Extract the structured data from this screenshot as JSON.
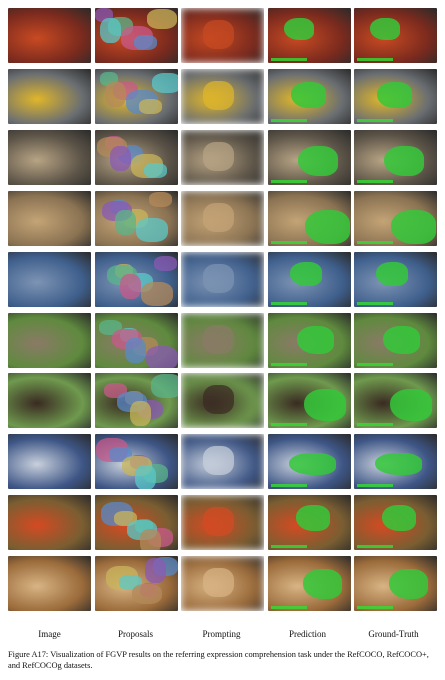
{
  "figure": {
    "columns": [
      "Image",
      "Proposals",
      "Prompting",
      "Prediction",
      "Ground-Truth"
    ],
    "caption": "Figure A17: Visualization of FGVP results on the referring expression comprehension task under the RefCOCO, RefCOCO+, and RefCOCOg datasets.",
    "rows": [
      {
        "scene": "fruit-bowl-tomatoes",
        "base": "#7a2a1e",
        "accent": "#c84a22",
        "mask": "#34c83a"
      },
      {
        "scene": "street-taxi",
        "base": "#6a6e72",
        "accent": "#e0b62a",
        "mask": "#34c83a"
      },
      {
        "scene": "dog-in-suitcase",
        "base": "#5b5347",
        "accent": "#b8a484",
        "mask": "#34c83a"
      },
      {
        "scene": "muddy-wrestling",
        "base": "#8a7252",
        "accent": "#c4a476",
        "mask": "#34c83a"
      },
      {
        "scene": "geese-on-water",
        "base": "#3f5f8c",
        "accent": "#7d94b4",
        "mask": "#34c83a"
      },
      {
        "scene": "elephants-in-field",
        "base": "#5f8a3e",
        "accent": "#8a7a66",
        "mask": "#34c83a"
      },
      {
        "scene": "cattle-in-pasture",
        "base": "#6f9a4e",
        "accent": "#3a2a22",
        "mask": "#34c83a"
      },
      {
        "scene": "art-desk-with-brush",
        "base": "#3e5686",
        "accent": "#c8d0dc",
        "mask": "#34c83a"
      },
      {
        "scene": "vegetables-platter",
        "base": "#7a5e32",
        "accent": "#d44a22",
        "mask": "#34c83a"
      },
      {
        "scene": "cat-on-table",
        "base": "#9a6a3a",
        "accent": "#d8b484",
        "mask": "#34c83a"
      }
    ]
  }
}
